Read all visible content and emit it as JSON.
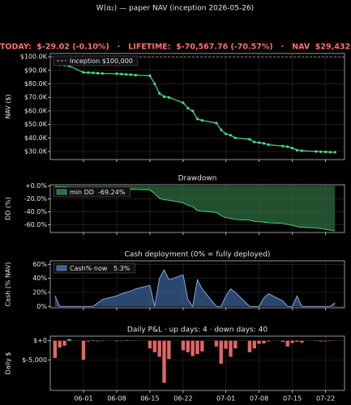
{
  "title": "W(α₂) — paper NAV (inception 2026-05-26)",
  "summary": "TODAY:  $-29.02 (-0.10%)   ·   LIFETIME:  $-70,567.76 (-70.57%)   ·   NAV  $29,432",
  "chart_data": [
    {
      "type": "line",
      "ylabel": "NAV ($)",
      "x": [
        "05-26",
        "05-27",
        "05-28",
        "05-29",
        "06-01",
        "06-02",
        "06-03",
        "06-04",
        "06-05",
        "06-08",
        "06-09",
        "06-10",
        "06-11",
        "06-12",
        "06-15",
        "06-16",
        "06-17",
        "06-18",
        "06-19",
        "06-22",
        "06-23",
        "06-24",
        "06-25",
        "06-26",
        "06-29",
        "06-30",
        "07-01",
        "07-02",
        "07-03",
        "07-06",
        "07-07",
        "07-08",
        "07-09",
        "07-10",
        "07-13",
        "07-14",
        "07-15",
        "07-16",
        "07-17",
        "07-20",
        "07-21",
        "07-22",
        "07-23",
        "07-24"
      ],
      "series": [
        {
          "color": "#4ade80",
          "values": [
            95500,
            94000,
            93800,
            93200,
            88500,
            88300,
            88100,
            87900,
            87700,
            87500,
            87300,
            87000,
            86800,
            86500,
            86000,
            80000,
            73000,
            70500,
            70000,
            66000,
            62000,
            60000,
            54000,
            53000,
            51000,
            46000,
            43000,
            42000,
            40000,
            39000,
            37000,
            36500,
            36000,
            35000,
            34000,
            33500,
            32500,
            31000,
            30500,
            30000,
            29800,
            29700,
            29461,
            29432
          ]
        }
      ],
      "reference_line": {
        "value": 100000,
        "label": "Inception $100,000",
        "color": "#9a9a9a"
      },
      "xlim": [
        "05-25",
        "07-26"
      ],
      "ylim": [
        24000,
        102500
      ],
      "yticks": [
        {
          "value": 30000,
          "label": "$30.0K"
        },
        {
          "value": 40000,
          "label": "$40.0K"
        },
        {
          "value": 50000,
          "label": "$50.0K"
        },
        {
          "value": 60000,
          "label": "$60.0K"
        },
        {
          "value": 70000,
          "label": "$70.0K"
        },
        {
          "value": 80000,
          "label": "$80.0K"
        },
        {
          "value": 90000,
          "label": "$90.0K"
        },
        {
          "value": 100000,
          "label": "$100.0K"
        }
      ],
      "grid": true
    },
    {
      "type": "area",
      "title": "Drawdown",
      "ylabel": "DD (%)",
      "x": [
        "05-26",
        "05-27",
        "05-28",
        "05-29",
        "06-01",
        "06-02",
        "06-03",
        "06-04",
        "06-05",
        "06-08",
        "06-09",
        "06-10",
        "06-11",
        "06-12",
        "06-15",
        "06-16",
        "06-17",
        "06-18",
        "06-19",
        "06-22",
        "06-23",
        "06-24",
        "06-25",
        "06-26",
        "06-29",
        "06-30",
        "07-01",
        "07-02",
        "07-03",
        "07-06",
        "07-07",
        "07-08",
        "07-09",
        "07-10",
        "07-13",
        "07-14",
        "07-15",
        "07-16",
        "07-17",
        "07-20",
        "07-21",
        "07-22",
        "07-23",
        "07-24"
      ],
      "series": [
        {
          "name": "min DD  -69.24%",
          "color": "#2e6b3f",
          "line_color": "#4ade80",
          "values": [
            -0.5,
            -1,
            -1.2,
            -1.8,
            -3.5,
            -3.7,
            -3.9,
            -4.1,
            -4.3,
            -4.5,
            -4.7,
            -5,
            -5.2,
            -5.5,
            -6,
            -12,
            -19,
            -21.5,
            -22,
            -26,
            -30,
            -32,
            -38,
            -39,
            -41,
            -46,
            -49,
            -50,
            -52,
            -53,
            -55,
            -55.5,
            -56,
            -57,
            -58,
            -59.5,
            -61,
            -63,
            -64,
            -65,
            -66,
            -67,
            -68.5,
            -69.24
          ]
        }
      ],
      "xlim": [
        "05-25",
        "07-26"
      ],
      "ylim": [
        -72,
        2
      ],
      "yticks": [
        {
          "value": -60,
          "label": "-60.0%"
        },
        {
          "value": -40,
          "label": "-40.0%"
        },
        {
          "value": -20,
          "label": "-20.0%"
        },
        {
          "value": 0,
          "label": "+0.0%"
        }
      ],
      "grid": true
    },
    {
      "type": "area",
      "title": "Cash deployment (0% = fully deployed)",
      "ylabel": "Cash (% NAV)",
      "x": [
        "05-26",
        "05-27",
        "05-28",
        "05-29",
        "06-01",
        "06-02",
        "06-03",
        "06-04",
        "06-05",
        "06-08",
        "06-09",
        "06-10",
        "06-11",
        "06-12",
        "06-15",
        "06-16",
        "06-17",
        "06-18",
        "06-19",
        "06-22",
        "06-23",
        "06-24",
        "06-25",
        "06-26",
        "06-29",
        "06-30",
        "07-01",
        "07-02",
        "07-03",
        "07-06",
        "07-07",
        "07-08",
        "07-09",
        "07-10",
        "07-13",
        "07-14",
        "07-15",
        "07-16",
        "07-17",
        "07-20",
        "07-21",
        "07-22",
        "07-23",
        "07-24"
      ],
      "series": [
        {
          "name": "Cash% now   5.3%",
          "color": "#3b5f94",
          "line_color": "#8fb3e8",
          "values": [
            15,
            0,
            0,
            0,
            0,
            0,
            0,
            5,
            10,
            15,
            18,
            20,
            22,
            25,
            30,
            0,
            40,
            52,
            38,
            45,
            10,
            0,
            38,
            25,
            0,
            0,
            15,
            25,
            20,
            0,
            0,
            0,
            12,
            18,
            8,
            0,
            0,
            15,
            0,
            0,
            0,
            0,
            0,
            5.3
          ]
        }
      ],
      "xlim": [
        "05-25",
        "07-26"
      ],
      "ylim": [
        -2,
        65
      ],
      "yticks": [
        {
          "value": 0,
          "label": "0%"
        },
        {
          "value": 20,
          "label": "20%"
        },
        {
          "value": 40,
          "label": "40%"
        },
        {
          "value": 60,
          "label": "60%"
        }
      ],
      "grid": true
    },
    {
      "type": "bar",
      "title": "Daily P&L  ·  up days: 4  ·  down days: 40",
      "ylabel": "Daily $",
      "x": [
        "05-26",
        "05-27",
        "05-28",
        "05-29",
        "06-01",
        "06-02",
        "06-03",
        "06-04",
        "06-05",
        "06-08",
        "06-09",
        "06-10",
        "06-11",
        "06-12",
        "06-15",
        "06-16",
        "06-17",
        "06-18",
        "06-19",
        "06-22",
        "06-23",
        "06-24",
        "06-25",
        "06-26",
        "06-29",
        "06-30",
        "07-01",
        "07-02",
        "07-03",
        "07-06",
        "07-07",
        "07-08",
        "07-09",
        "07-10",
        "07-13",
        "07-14",
        "07-15",
        "07-16",
        "07-17",
        "07-20",
        "07-21",
        "07-22",
        "07-23",
        "07-24"
      ],
      "series": [
        {
          "values": [
            -4500,
            -1800,
            -1300,
            400,
            -5000,
            -200,
            100,
            -150,
            -100,
            -120,
            -100,
            80,
            -90,
            -60,
            -2000,
            -3000,
            -4200,
            -11000,
            -4800,
            -2500,
            -3000,
            -4000,
            -3500,
            -2800,
            -1500,
            -6000,
            -2100,
            -4200,
            -2000,
            -3000,
            -2000,
            -800,
            -700,
            -200,
            -300,
            -1500,
            -600,
            -300,
            -500,
            60,
            -200,
            -150,
            -100,
            -29
          ]
        }
      ],
      "color_positive": "#4ade80",
      "color_negative": "#e06666",
      "xlim": [
        "05-25",
        "07-26"
      ],
      "xticks": [
        "06-01",
        "06-08",
        "06-15",
        "06-22",
        "07-01",
        "07-08",
        "07-15",
        "07-22"
      ],
      "ylim": [
        -13000,
        1200
      ],
      "yticks": [
        {
          "value": -5000,
          "label": "$-5,000"
        },
        {
          "value": 0,
          "label": "$+0"
        }
      ],
      "grid": true
    }
  ]
}
